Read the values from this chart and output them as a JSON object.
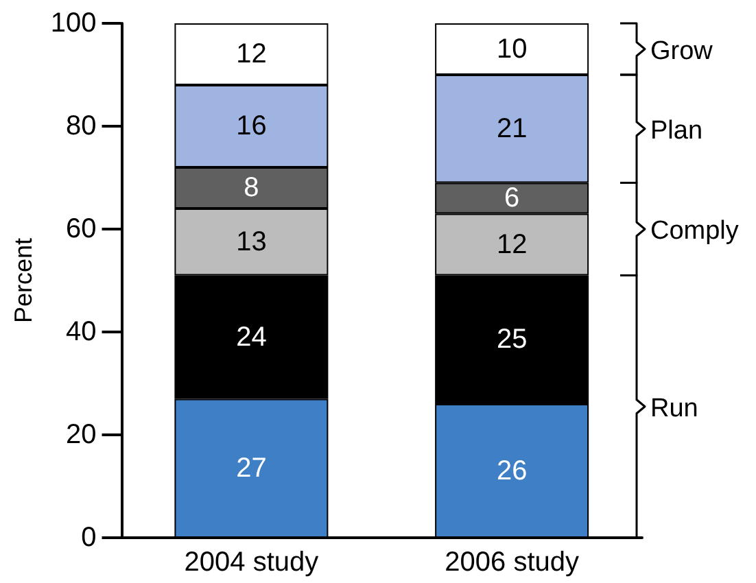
{
  "chart_data": {
    "type": "bar",
    "stacked": true,
    "ylabel": "Percent",
    "categories": [
      "2004 study",
      "2006 study"
    ],
    "series": [
      {
        "color": "#3f7fc6",
        "values": [
          27,
          26
        ]
      },
      {
        "color": "#000000",
        "values": [
          24,
          25
        ]
      },
      {
        "color": "#bcbcbc",
        "values": [
          13,
          12
        ]
      },
      {
        "color": "#606060",
        "values": [
          8,
          6
        ]
      },
      {
        "color": "#9fb4e0",
        "values": [
          16,
          21
        ]
      },
      {
        "color": "#ffffff",
        "values": [
          12,
          10
        ]
      }
    ],
    "ylim": [
      0,
      100
    ],
    "yticks": [
      0,
      20,
      40,
      60,
      80,
      100
    ],
    "data_labels": true,
    "annotations": [
      "Grow",
      "Plan",
      "Comply",
      "Run"
    ]
  }
}
